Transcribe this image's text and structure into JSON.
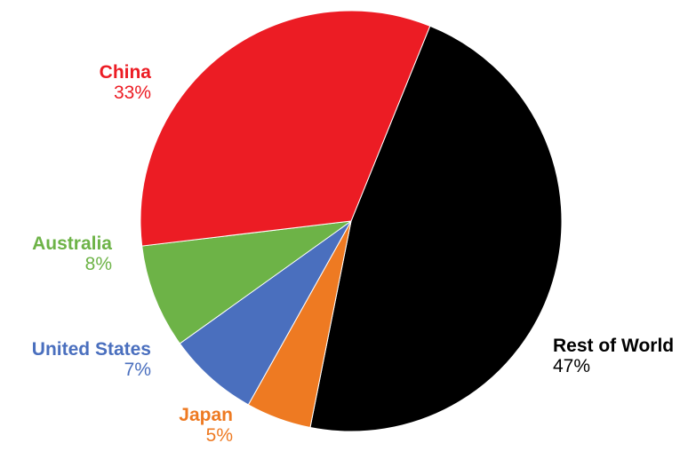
{
  "chart_data": {
    "type": "pie",
    "title": "",
    "slices": [
      {
        "label": "Rest of World",
        "percent_label": "47%",
        "value": 47,
        "color": "#000000"
      },
      {
        "label": "Japan",
        "percent_label": "5%",
        "value": 5,
        "color": "#EE7A22"
      },
      {
        "label": "United States",
        "percent_label": "7%",
        "value": 7,
        "color": "#4A6FBE"
      },
      {
        "label": "Australia",
        "percent_label": "8%",
        "value": 8,
        "color": "#6DB347"
      },
      {
        "label": "China",
        "percent_label": "33%",
        "value": 33,
        "color": "#EC1C24"
      }
    ],
    "legend": "none"
  }
}
